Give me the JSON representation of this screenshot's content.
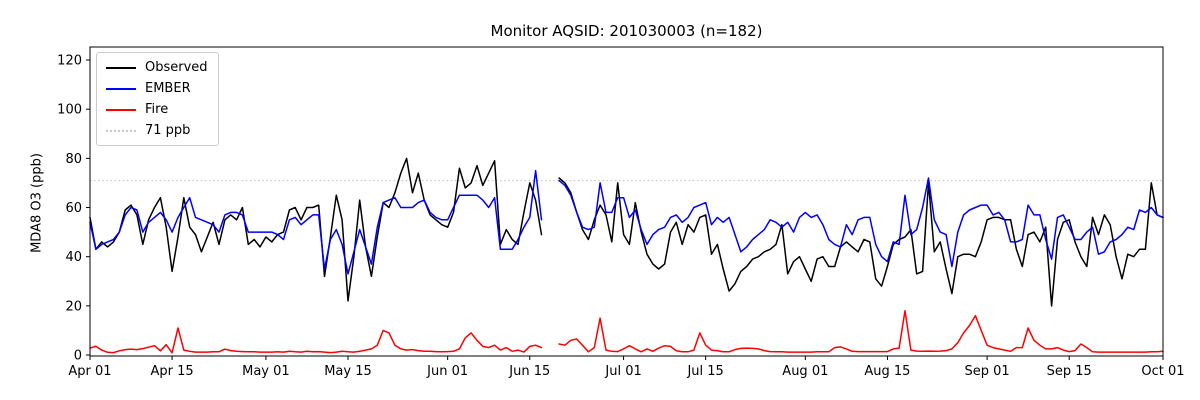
{
  "figure": {
    "title": "Monitor AQSID: 201030003 (n=182)",
    "ylabel": "MDA8 O3 (ppb)",
    "background": "#ffffff"
  },
  "legend": {
    "position": "upper left",
    "items": [
      {
        "label": "Observed",
        "color": "#000000",
        "style": "solid"
      },
      {
        "label": "EMBER",
        "color": "#0000ff",
        "style": "solid"
      },
      {
        "label": "Fire",
        "color": "#ff0000",
        "style": "solid"
      },
      {
        "label": "71 ppb",
        "color": "#c9c9c9",
        "style": "dotted"
      }
    ]
  },
  "chart_data": {
    "type": "line",
    "title": "Monitor AQSID: 201030003 (n=182)",
    "xlabel": "",
    "ylabel": "MDA8 O3 (ppb)",
    "x_unit": "date",
    "x_start_label": "Apr 01",
    "x_end_label": "Oct 01",
    "n_points": 184,
    "note": "daily values Apr 01 through Oct 01; null = missing day (gap Jun 18-19)",
    "ylim": [
      -0.4,
      125.3
    ],
    "yticks": [
      0,
      20,
      40,
      60,
      80,
      100,
      120
    ],
    "xticks": [
      {
        "index": 0,
        "label": "Apr 01"
      },
      {
        "index": 14,
        "label": "Apr 15"
      },
      {
        "index": 30,
        "label": "May 01"
      },
      {
        "index": 44,
        "label": "May 15"
      },
      {
        "index": 61,
        "label": "Jun 01"
      },
      {
        "index": 75,
        "label": "Jun 15"
      },
      {
        "index": 91,
        "label": "Jul 01"
      },
      {
        "index": 105,
        "label": "Jul 15"
      },
      {
        "index": 122,
        "label": "Aug 01"
      },
      {
        "index": 136,
        "label": "Aug 15"
      },
      {
        "index": 153,
        "label": "Sep 01"
      },
      {
        "index": 167,
        "label": "Sep 15"
      },
      {
        "index": 183,
        "label": "Oct 01"
      }
    ],
    "reference_line": {
      "value": 71,
      "label": "71 ppb",
      "color": "#c9c9c9",
      "linestyle": "dotted"
    },
    "grid": false,
    "legend_position": "upper left",
    "series": [
      {
        "name": "Observed",
        "key": "observed",
        "color": "#000000",
        "values": [
          56,
          43,
          46,
          44,
          46,
          50,
          59,
          61,
          57,
          45,
          55,
          60,
          64,
          52,
          34,
          48,
          64,
          52,
          49,
          42,
          48,
          54,
          45,
          55,
          57,
          55,
          60,
          45,
          47,
          44,
          48,
          46,
          49,
          50,
          59,
          60,
          55,
          60,
          60,
          61,
          32,
          48,
          65,
          55,
          22,
          40,
          63,
          44,
          32,
          48,
          62,
          60,
          66,
          74,
          80,
          66,
          74,
          63,
          57,
          55,
          53,
          52,
          58,
          76,
          68,
          70,
          77,
          69,
          74,
          79,
          45,
          51,
          47,
          45,
          58,
          70,
          63,
          49,
          null,
          null,
          72,
          70,
          66,
          58,
          51,
          47,
          55,
          61,
          57,
          46,
          70,
          49,
          45,
          62,
          50,
          41,
          37,
          35,
          37,
          50,
          54,
          45,
          53,
          50,
          56,
          57,
          41,
          45,
          35,
          26,
          29,
          34,
          36,
          39,
          40,
          42,
          43,
          45,
          53,
          33,
          38,
          40,
          35,
          30,
          39,
          40,
          36,
          36,
          44,
          46,
          44,
          42,
          47,
          46,
          31,
          28,
          36,
          45,
          47,
          48,
          51,
          33,
          34,
          70,
          42,
          46,
          35,
          25,
          40,
          41,
          41,
          40,
          46,
          55,
          56,
          56,
          55,
          55,
          43,
          36,
          49,
          50,
          46,
          52,
          20,
          47,
          54,
          55,
          46,
          40,
          36,
          56,
          49,
          57,
          53,
          40,
          31,
          41,
          40,
          43,
          43,
          70,
          57,
          56
        ]
      },
      {
        "name": "EMBER",
        "key": "ember",
        "color": "#0000ff",
        "values": [
          54,
          43,
          45,
          46,
          47,
          50,
          57,
          60,
          59,
          50,
          54,
          56,
          58,
          55,
          50,
          56,
          60,
          64,
          56,
          55,
          54,
          53,
          50,
          57,
          58,
          58,
          57,
          50,
          50,
          50,
          50,
          50,
          49,
          47,
          55,
          56,
          53,
          55,
          57,
          57,
          35,
          47,
          51,
          45,
          33,
          42,
          51,
          44,
          37,
          52,
          62,
          63,
          64,
          60,
          60,
          60,
          62,
          63,
          58,
          56,
          55,
          55,
          60,
          65,
          65,
          65,
          65,
          63,
          60,
          64,
          43,
          43,
          43,
          47,
          52,
          56,
          75,
          55,
          null,
          null,
          71,
          69,
          65,
          58,
          52,
          51,
          52,
          70,
          58,
          58,
          64,
          64,
          56,
          59,
          51,
          45,
          49,
          51,
          52,
          56,
          57,
          54,
          56,
          60,
          61,
          62,
          53,
          56,
          54,
          56,
          49,
          42,
          44,
          47,
          49,
          51,
          55,
          54,
          52,
          54,
          50,
          56,
          58,
          56,
          57,
          53,
          47,
          45,
          44,
          53,
          49,
          55,
          56,
          56,
          45,
          40,
          38,
          46,
          45,
          65,
          49,
          51,
          60,
          72,
          55,
          50,
          49,
          36,
          50,
          57,
          59,
          60,
          61,
          61,
          57,
          58,
          55,
          46,
          46,
          47,
          61,
          57,
          57,
          47,
          39,
          56,
          57,
          52,
          47,
          47,
          50,
          52,
          41,
          42,
          46,
          47,
          49,
          52,
          51,
          59,
          58,
          60,
          57,
          56
        ]
      },
      {
        "name": "Fire",
        "key": "fire",
        "color": "#ff0000",
        "values": [
          2.8,
          3.6,
          2,
          1.1,
          1,
          1.7,
          2.2,
          2.4,
          2.2,
          2.6,
          3.2,
          3.8,
          1.7,
          4.2,
          0.9,
          11,
          2,
          1.5,
          1.2,
          1.2,
          1.2,
          1.3,
          1.3,
          2.4,
          1.8,
          1.5,
          1.4,
          1.3,
          1.3,
          1.2,
          1.2,
          1.2,
          1.3,
          1.2,
          1.5,
          1.3,
          1.2,
          1.5,
          1.3,
          1.4,
          1.2,
          1,
          1.2,
          1.5,
          1.3,
          1.2,
          1.5,
          2,
          2.5,
          4,
          10,
          9,
          4,
          2.5,
          2,
          2.2,
          1.8,
          1.5,
          1.5,
          1.4,
          1.3,
          1.4,
          1.5,
          2.5,
          7,
          9,
          6,
          3.5,
          3,
          4,
          2,
          3,
          1.5,
          2,
          1.2,
          3.5,
          4,
          3,
          null,
          null,
          4.5,
          4,
          6,
          6.5,
          4,
          1.3,
          3,
          15,
          2,
          1.5,
          1.4,
          2.5,
          3.8,
          2.5,
          1.3,
          2.5,
          1.5,
          2.8,
          3.8,
          3.5,
          1.7,
          1.3,
          1.3,
          2,
          9,
          4,
          2,
          1.7,
          1.3,
          1.3,
          2.2,
          2.7,
          2.8,
          2.7,
          2.5,
          1.8,
          1.4,
          1.3,
          1.3,
          1.2,
          1.2,
          1.2,
          1.2,
          1.2,
          1.3,
          1.3,
          1.3,
          3,
          3.3,
          2.5,
          1.5,
          1.4,
          1.4,
          1.4,
          1.4,
          1.4,
          1.4,
          2.5,
          2.8,
          18,
          2,
          1.6,
          1.5,
          1.6,
          1.5,
          1.6,
          1.8,
          2.5,
          5,
          9,
          12,
          16,
          10,
          4,
          3,
          2.5,
          2,
          1.5,
          3,
          3,
          11,
          6,
          4,
          2.5,
          2.5,
          3,
          2,
          1.4,
          1.8,
          4.5,
          3,
          1.3,
          1.2,
          1.2,
          1.2,
          1.2,
          1.2,
          1.2,
          1.2,
          1.2,
          1.2,
          1.3,
          1.3,
          1.5
        ]
      }
    ]
  }
}
